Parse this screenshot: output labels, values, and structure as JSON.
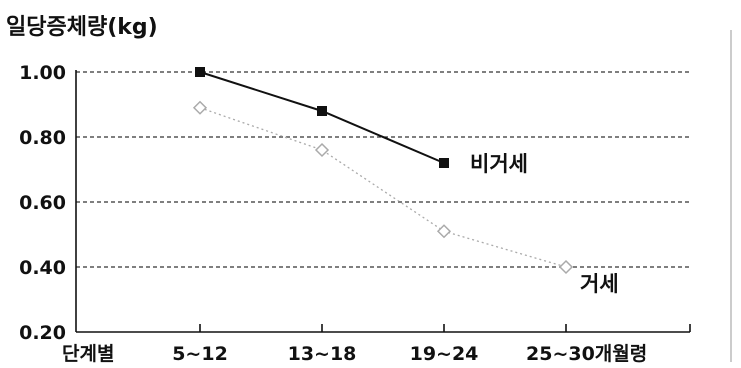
{
  "chart_data": {
    "type": "line",
    "ylabel": "일당증체량(kg)",
    "x_axis_lead_label": "단계별",
    "categories": [
      "5~12",
      "13~18",
      "19~24",
      "25~30개월령"
    ],
    "ylim": [
      0.2,
      1.0
    ],
    "y_ticks": [
      "0.20",
      "0.40",
      "0.60",
      "0.80",
      "1.00"
    ],
    "grid": "horizontal dashed",
    "series": [
      {
        "name": "비거세",
        "values": [
          1.0,
          0.88,
          0.72,
          null
        ],
        "color": "#111111",
        "line_style": "solid",
        "marker": "square"
      },
      {
        "name": "거세",
        "values": [
          0.89,
          0.76,
          0.51,
          0.4
        ],
        "color": "#aaaaaa",
        "line_style": "dotted",
        "marker": "diamond"
      }
    ]
  },
  "right_border_color": "#bbbbbb"
}
